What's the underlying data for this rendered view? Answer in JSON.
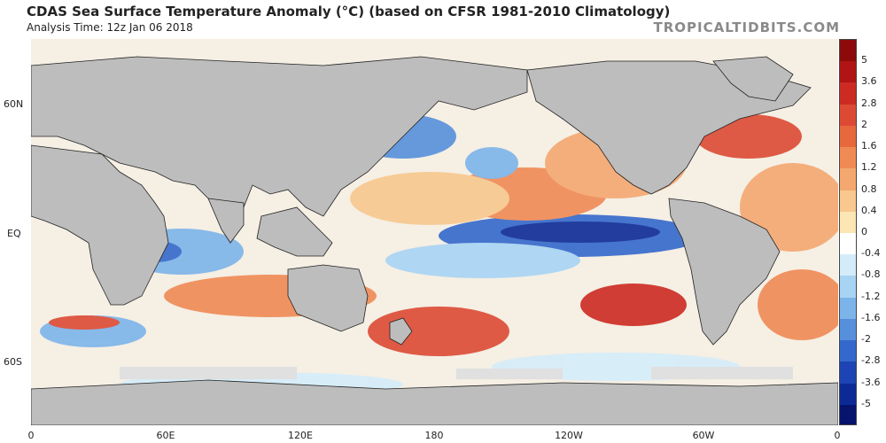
{
  "header": {
    "title": "CDAS Sea Surface Temperature Anomaly (°C) (based on CFSR 1981-2010 Climatology)",
    "analysis_time": "Analysis Time: 12z Jan 06 2018",
    "brand": "TROPICALTIDBITS.COM"
  },
  "axes": {
    "lat_labels": [
      "60N",
      "EQ",
      "60S"
    ],
    "lon_labels": [
      "0",
      "60E",
      "120E",
      "180",
      "120W",
      "60W",
      "0"
    ]
  },
  "colorbar": {
    "labels": [
      "5",
      "3.6",
      "2.8",
      "2",
      "1.6",
      "1.2",
      "0.8",
      "0.4",
      "0",
      "-0.4",
      "-0.8",
      "-1.2",
      "-1.6",
      "-2",
      "-2.8",
      "-3.6",
      "-5"
    ],
    "colors": [
      "#8c0a0a",
      "#b01414",
      "#cc2a22",
      "#dc4a34",
      "#e8683e",
      "#f08a54",
      "#f4a870",
      "#f8c88e",
      "#fbe6b4",
      "#ffffff",
      "#d4ecfa",
      "#a8d4f4",
      "#7cb4ea",
      "#5690dc",
      "#3468cc",
      "#1c44b4",
      "#0c2a96",
      "#06146e"
    ]
  },
  "map_colors": {
    "ocean_base": "#f5efe4",
    "land": "#bdbdbd",
    "sea_ice": "#e0e0e0"
  }
}
